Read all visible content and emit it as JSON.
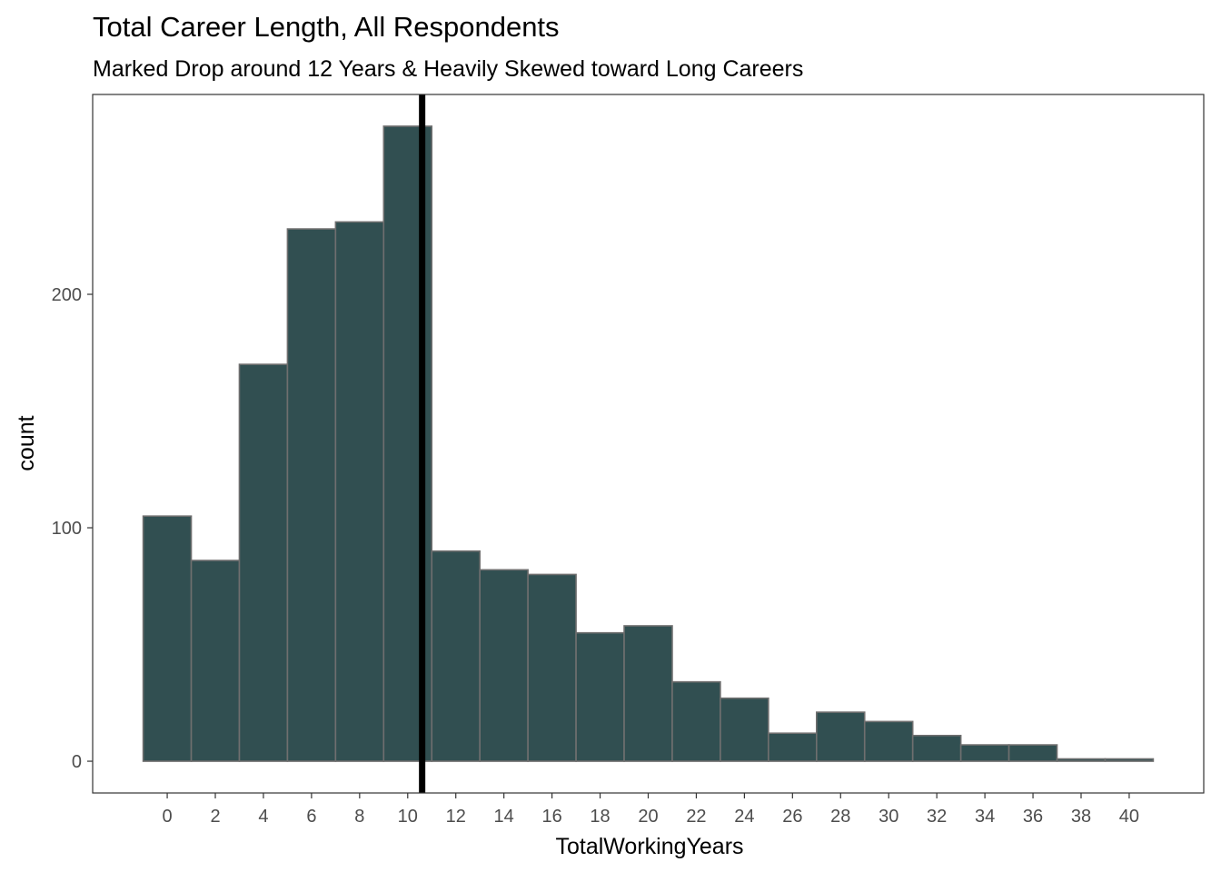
{
  "chart_data": {
    "type": "bar",
    "title": "Total Career Length, All Respondents",
    "subtitle": "Marked Drop around 12 Years & Heavily Skewed toward Long Careers",
    "xlabel": "TotalWorkingYears",
    "ylabel": "count",
    "bin_width": 2,
    "bins": [
      {
        "start": -1,
        "end": 1,
        "count": 105
      },
      {
        "start": 1,
        "end": 3,
        "count": 86
      },
      {
        "start": 3,
        "end": 5,
        "count": 170
      },
      {
        "start": 5,
        "end": 7,
        "count": 228
      },
      {
        "start": 7,
        "end": 9,
        "count": 231
      },
      {
        "start": 9,
        "end": 11,
        "count": 272
      },
      {
        "start": 11,
        "end": 13,
        "count": 90
      },
      {
        "start": 13,
        "end": 15,
        "count": 82
      },
      {
        "start": 15,
        "end": 17,
        "count": 80
      },
      {
        "start": 17,
        "end": 19,
        "count": 55
      },
      {
        "start": 19,
        "end": 21,
        "count": 58
      },
      {
        "start": 21,
        "end": 23,
        "count": 34
      },
      {
        "start": 23,
        "end": 25,
        "count": 27
      },
      {
        "start": 25,
        "end": 27,
        "count": 12
      },
      {
        "start": 27,
        "end": 29,
        "count": 21
      },
      {
        "start": 29,
        "end": 31,
        "count": 17
      },
      {
        "start": 31,
        "end": 33,
        "count": 11
      },
      {
        "start": 33,
        "end": 35,
        "count": 7
      },
      {
        "start": 35,
        "end": 37,
        "count": 7
      },
      {
        "start": 37,
        "end": 39,
        "count": 1
      },
      {
        "start": 39,
        "end": 41,
        "count": 1
      }
    ],
    "reference_line": {
      "x": 10.6,
      "color": "#000000"
    },
    "x_ticks": [
      0,
      2,
      4,
      6,
      8,
      10,
      12,
      14,
      16,
      18,
      20,
      22,
      24,
      26,
      28,
      30,
      32,
      34,
      36,
      38,
      40
    ],
    "y_ticks": [
      0,
      100,
      200
    ],
    "xlim": [
      -3.1,
      43.1
    ],
    "ylim": [
      -13.6,
      285.6
    ],
    "grid": false,
    "legend": "none",
    "colors": {
      "bar_fill": "#314f51",
      "bar_stroke": "#6f6f6f",
      "panel_border": "#333333",
      "tick_label": "#4d4d4d"
    }
  }
}
